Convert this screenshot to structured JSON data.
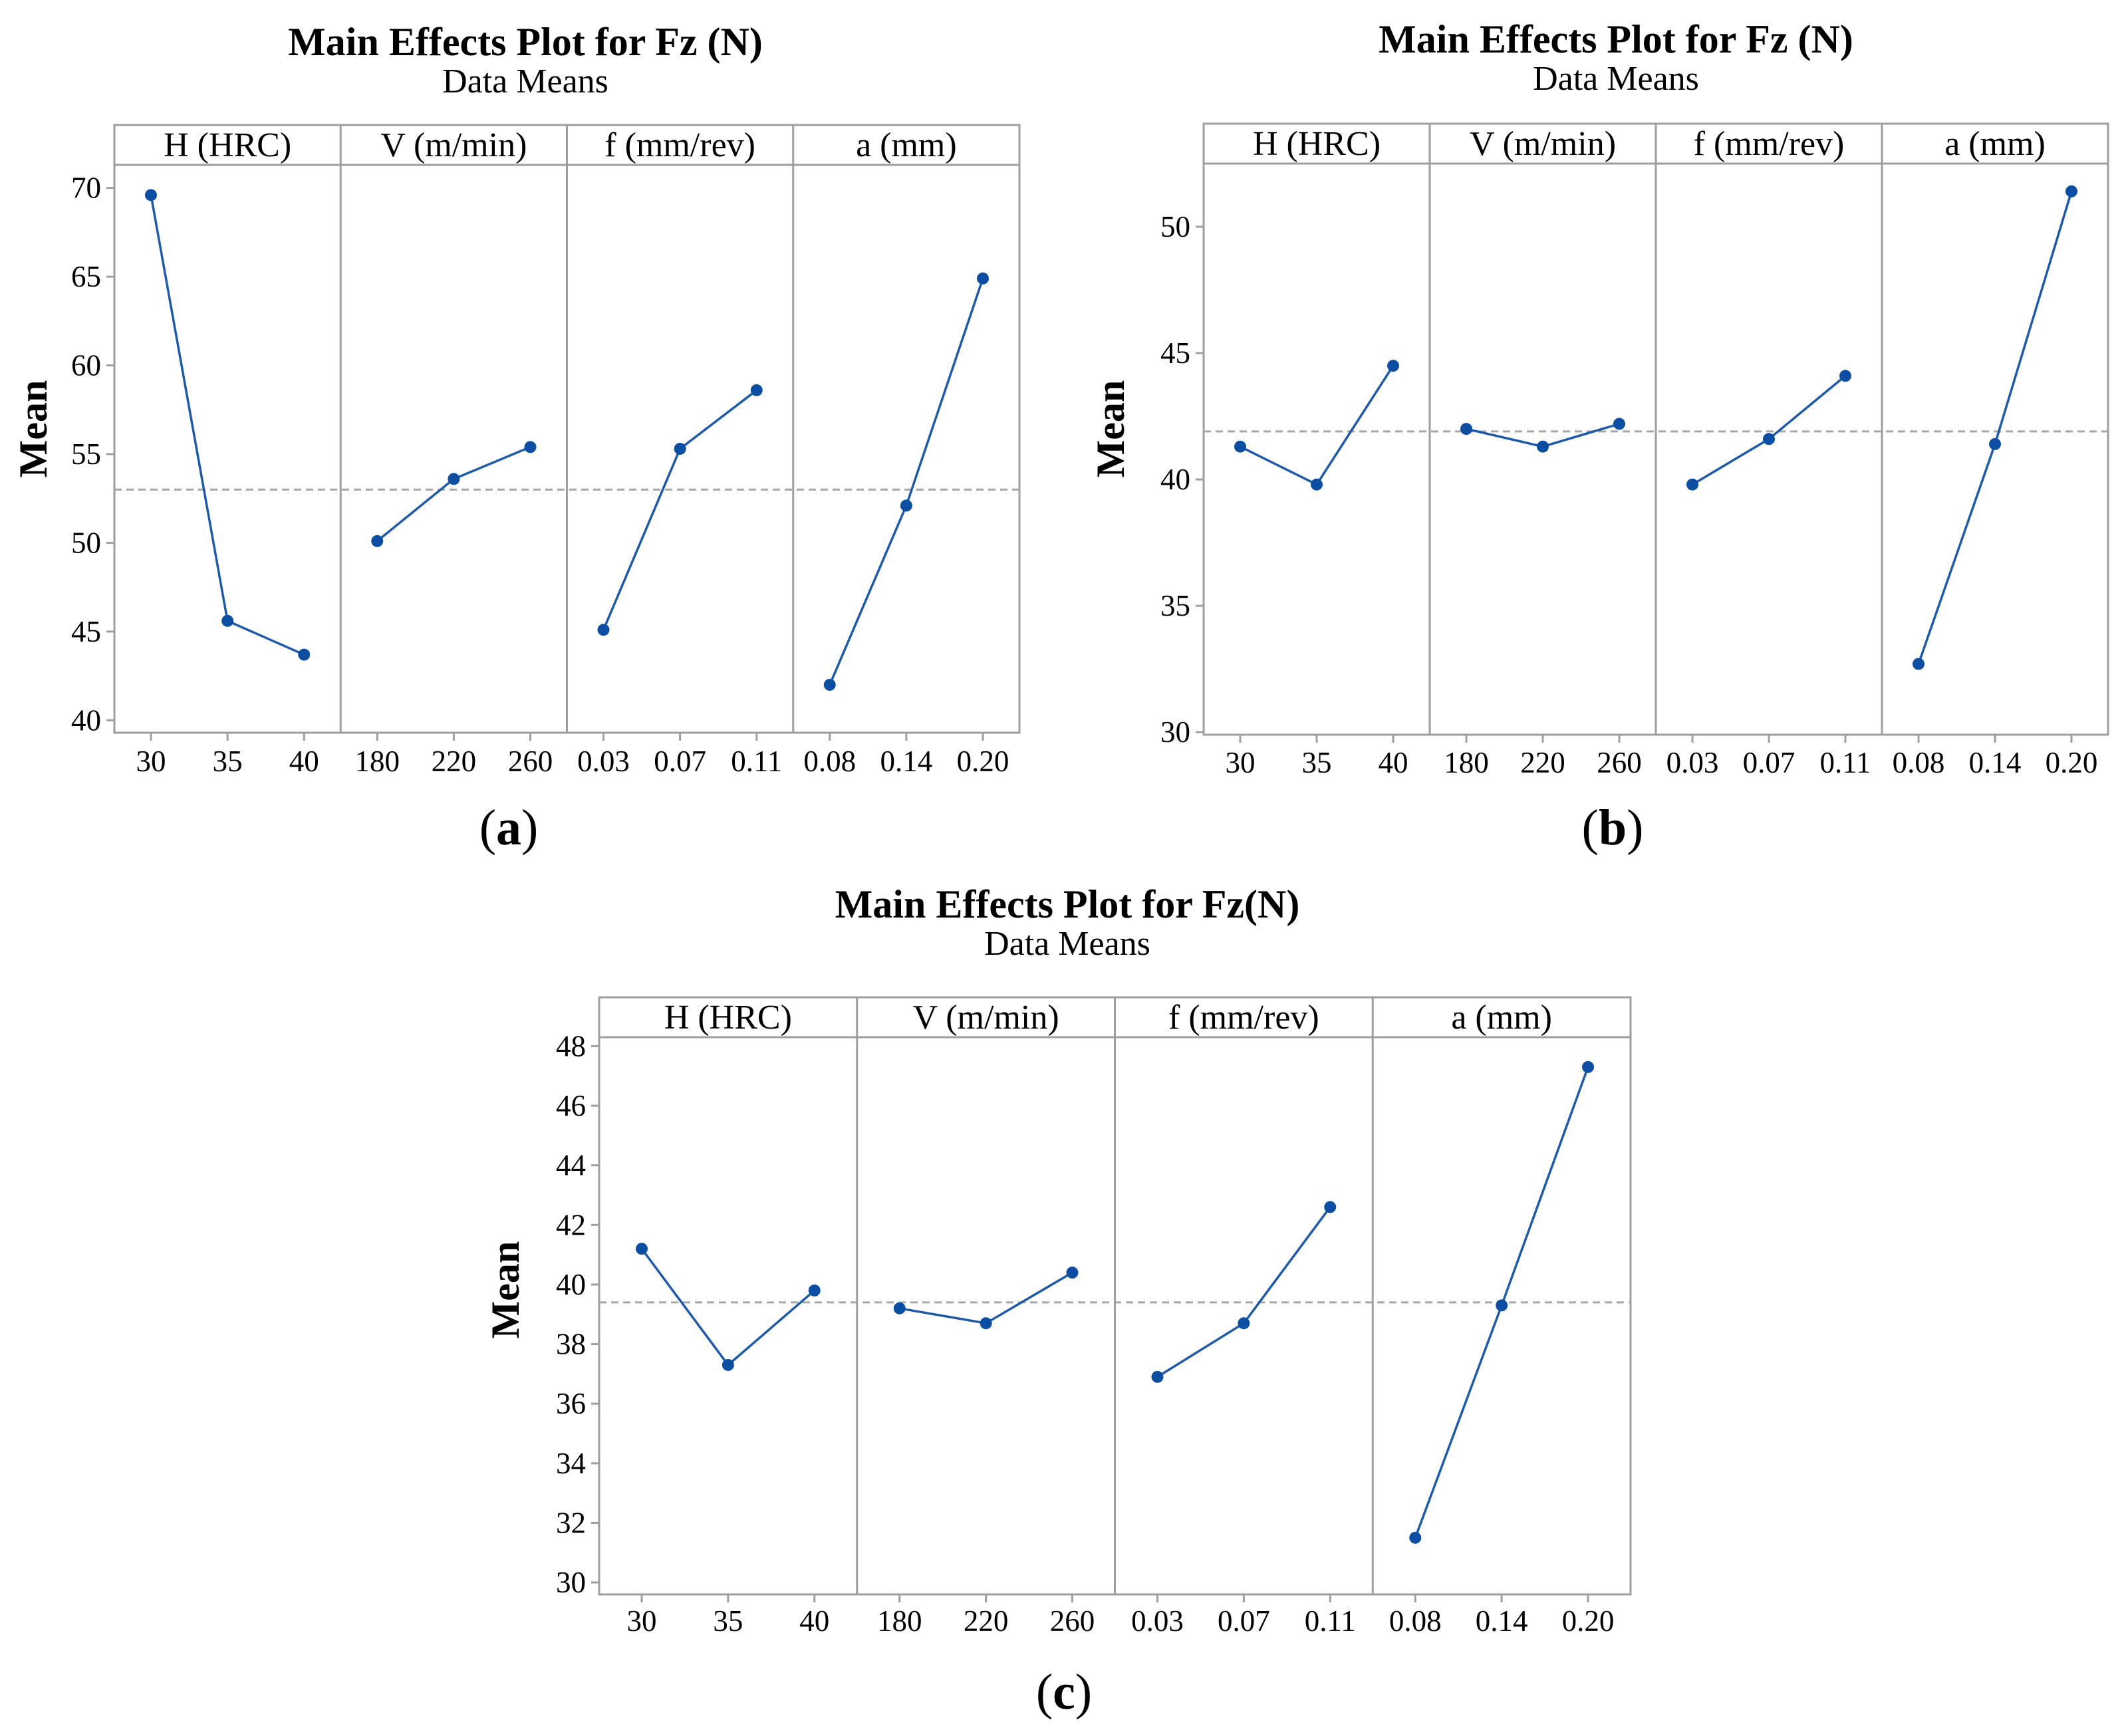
{
  "figure": {
    "panels": [
      "a",
      "b",
      "c"
    ]
  },
  "chart_data": [
    {
      "panel": "a",
      "panel_label_paren_open": "(",
      "panel_label_letter": "a",
      "panel_label_paren_close": ")",
      "type": "line",
      "title": "Main Effects Plot for Fz (N)",
      "subtitle": "Data Means",
      "ylabel": "Mean",
      "ylim": [
        39.3,
        71.3
      ],
      "yticks": [
        40,
        45,
        50,
        55,
        60,
        65,
        70
      ],
      "reference_mean": 53.0,
      "color": "#0b4ea2",
      "factors": [
        {
          "name": "H (HRC)",
          "levels": [
            "30",
            "35",
            "40"
          ],
          "values": [
            69.6,
            45.6,
            43.7
          ]
        },
        {
          "name": "V (m/min)",
          "levels": [
            "180",
            "220",
            "260"
          ],
          "values": [
            50.1,
            53.6,
            55.4
          ]
        },
        {
          "name": "f (mm/rev)",
          "levels": [
            "0.03",
            "0.07",
            "0.11"
          ],
          "values": [
            45.1,
            55.3,
            58.6
          ]
        },
        {
          "name": "a (mm)",
          "levels": [
            "0.08",
            "0.14",
            "0.20"
          ],
          "values": [
            42.0,
            52.1,
            64.9
          ]
        }
      ]
    },
    {
      "panel": "b",
      "panel_label_paren_open": "(",
      "panel_label_letter": "b",
      "panel_label_paren_close": ")",
      "type": "line",
      "title": "Main Effects Plot for Fz (N)",
      "subtitle": "Data Means",
      "ylabel": "Mean",
      "ylim": [
        29.9,
        52.5
      ],
      "yticks": [
        30,
        35,
        40,
        45,
        50
      ],
      "reference_mean": 41.9,
      "color": "#0b4ea2",
      "factors": [
        {
          "name": "H (HRC)",
          "levels": [
            "30",
            "35",
            "40"
          ],
          "values": [
            41.3,
            39.8,
            44.5
          ]
        },
        {
          "name": "V (m/min)",
          "levels": [
            "180",
            "220",
            "260"
          ],
          "values": [
            42.0,
            41.3,
            42.2
          ]
        },
        {
          "name": "f (mm/rev)",
          "levels": [
            "0.03",
            "0.07",
            "0.11"
          ],
          "values": [
            39.8,
            41.6,
            44.1
          ]
        },
        {
          "name": "a (mm)",
          "levels": [
            "0.08",
            "0.14",
            "0.20"
          ],
          "values": [
            32.7,
            41.4,
            51.4
          ]
        }
      ]
    },
    {
      "panel": "c",
      "panel_label_paren_open": "(",
      "panel_label_letter": "c",
      "panel_label_paren_close": ")",
      "type": "line",
      "title": "Main Effects Plot for Fz(N)",
      "subtitle": "Data Means",
      "ylabel": "Mean",
      "ylim": [
        29.6,
        48.3
      ],
      "yticks": [
        30,
        32,
        34,
        36,
        38,
        40,
        42,
        44,
        46,
        48
      ],
      "reference_mean": 39.4,
      "color": "#0b4ea2",
      "factors": [
        {
          "name": "H (HRC)",
          "levels": [
            "30",
            "35",
            "40"
          ],
          "values": [
            41.2,
            37.3,
            39.8
          ]
        },
        {
          "name": "V (m/min)",
          "levels": [
            "180",
            "220",
            "260"
          ],
          "values": [
            39.2,
            38.7,
            40.4
          ]
        },
        {
          "name": "f (mm/rev)",
          "levels": [
            "0.03",
            "0.07",
            "0.11"
          ],
          "values": [
            36.9,
            38.7,
            42.6
          ]
        },
        {
          "name": "a (mm)",
          "levels": [
            "0.08",
            "0.14",
            "0.20"
          ],
          "values": [
            31.5,
            39.3,
            47.3
          ]
        }
      ]
    }
  ]
}
